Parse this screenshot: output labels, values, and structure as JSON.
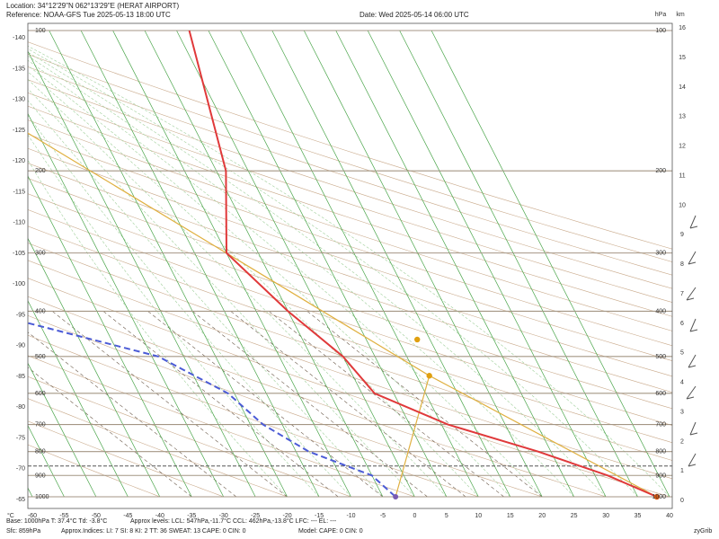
{
  "header": {
    "location": "Location:  34°12'29\"N  062°13'29\"E (HERAT AIRPORT)",
    "reference": "Reference: NOAA-GFS Tue 2025-05-13 18:00 UTC",
    "date": "Date: Wed 2025-05-14 06:00 UTC"
  },
  "axis_units": {
    "temp": "°C",
    "pressure": "hPa",
    "height": "km"
  },
  "footer": {
    "line1_a": "Base: 1000hPa  T: 37.4°C  Td: -3.8°C",
    "line1_b": "Approx levels:  LCL: 547hPa,-11.7°C   CCL: 462hPa,-13.8°C   LFC: ---   EL: ---",
    "line2_a": "Sfc: 859hPa",
    "line2_b": "Approx.Indices:  LI: 7   SI: 8   KI: 2   TT: 36   SWEAT: 13     CAPE: 0  CIN: 0",
    "line2_c": "Model: CAPE: 0  CIN: 0",
    "brand": "zyGrib"
  },
  "chart_data": {
    "type": "line",
    "title": "",
    "xlabel": "°C",
    "ylabel": "hPa",
    "x_ticks": [
      -60,
      -55,
      -50,
      -45,
      -40,
      -35,
      -30,
      -25,
      -20,
      -15,
      -10,
      -5,
      0,
      5,
      10,
      15,
      20,
      25,
      30,
      35,
      40
    ],
    "left_temp_ticks": [
      -140,
      -135,
      -130,
      -125,
      -120,
      -115,
      -110,
      -105,
      -100,
      -95,
      -90,
      -85,
      -80,
      -75,
      -70,
      -65
    ],
    "pressure_levels": [
      100,
      200,
      300,
      400,
      500,
      600,
      700,
      800,
      900,
      1000
    ],
    "height_ticks_km": [
      0,
      1,
      2,
      3,
      4,
      5,
      6,
      7,
      8,
      9,
      10,
      11,
      12,
      13,
      14,
      15,
      16
    ],
    "grid": true,
    "series": [
      {
        "name": "Temperature",
        "color": "#e0393a",
        "points": [
          {
            "p": 100,
            "t": 2
          },
          {
            "p": 200,
            "t": -3.5
          },
          {
            "p": 300,
            "t": -10
          },
          {
            "p": 400,
            "t": -5
          },
          {
            "p": 500,
            "t": 0
          },
          {
            "p": 600,
            "t": 2
          },
          {
            "p": 700,
            "t": 11
          },
          {
            "p": 800,
            "t": 23
          },
          {
            "p": 900,
            "t": 32
          },
          {
            "p": 1000,
            "t": 38
          }
        ]
      },
      {
        "name": "Dew point",
        "color": "#4b5bd6",
        "points": [
          {
            "p": 100,
            "t": -70
          },
          {
            "p": 200,
            "t": -92
          },
          {
            "p": 300,
            "t": -71
          },
          {
            "p": 400,
            "t": -53
          },
          {
            "p": 500,
            "t": -29
          },
          {
            "p": 600,
            "t": -21
          },
          {
            "p": 700,
            "t": -18
          },
          {
            "p": 800,
            "t": -13
          },
          {
            "p": 900,
            "t": -5
          },
          {
            "p": 1000,
            "t": -3
          }
        ]
      }
    ],
    "parcel_markers": [
      {
        "p": 460,
        "t": 13
      },
      {
        "p": 550,
        "t": 12
      }
    ],
    "surface_pressure": 859
  }
}
